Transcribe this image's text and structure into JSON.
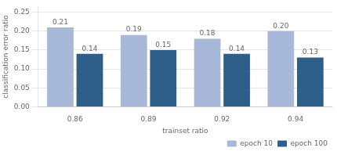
{
  "chart_data": {
    "type": "bar",
    "categories": [
      "0.86",
      "0.89",
      "0.92",
      "0.94"
    ],
    "series": [
      {
        "name": "epoch 10",
        "color": "#a8b8d8",
        "values": [
          0.21,
          0.19,
          0.18,
          0.2
        ],
        "value_labels": [
          "0.21",
          "0.19",
          "0.18",
          "0.20"
        ]
      },
      {
        "name": "epoch 100",
        "color": "#2e5f8a",
        "values": [
          0.14,
          0.15,
          0.14,
          0.13
        ],
        "value_labels": [
          "0.14",
          "0.15",
          "0.14",
          "0.13"
        ]
      }
    ],
    "xlabel": "trainset ratio",
    "ylabel": "classification error ratio",
    "ylim": [
      0.0,
      0.265
    ],
    "yticks": [
      {
        "value": 0.0,
        "label": "0.00"
      },
      0.05,
      {
        "value": 0.1,
        "label": "0.10"
      },
      0.15,
      {
        "value": 0.2,
        "label": "0.20"
      },
      0.25
    ],
    "grid": true,
    "legend": "lower right",
    "data_labels": true
  }
}
